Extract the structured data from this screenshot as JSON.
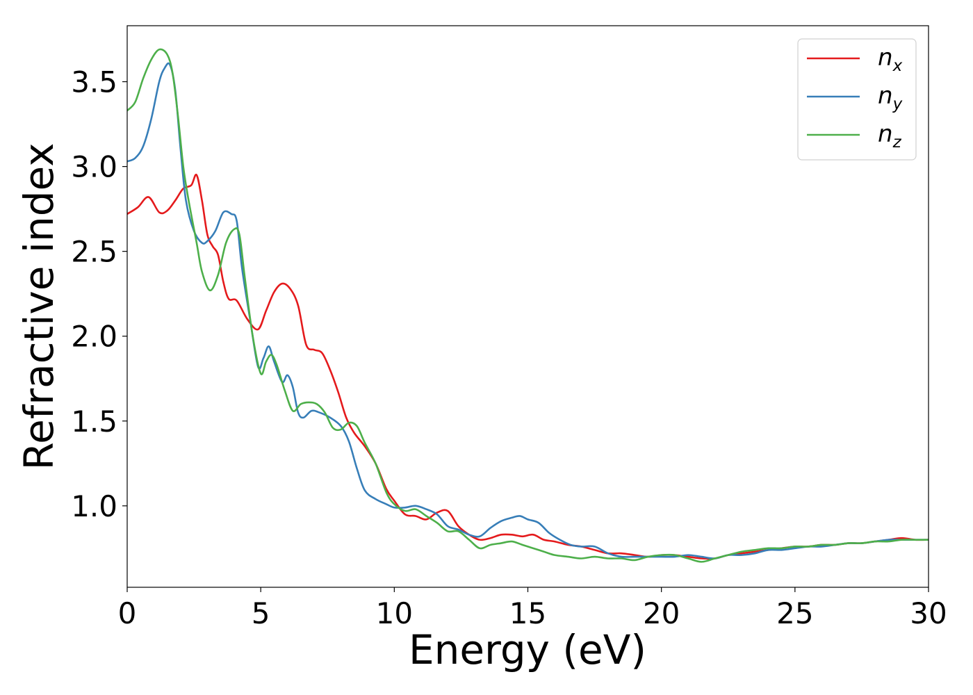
{
  "chart_data": {
    "type": "line",
    "title": "",
    "xlabel": "Energy (eV)",
    "ylabel": "Refractive index",
    "xlim": [
      0,
      30
    ],
    "ylim": [
      0.52,
      3.83
    ],
    "xticks": [
      0,
      5,
      10,
      15,
      20,
      25,
      30
    ],
    "xtick_labels": [
      "0",
      "5",
      "10",
      "15",
      "20",
      "25",
      "30"
    ],
    "yticks": [
      1.0,
      1.5,
      2.0,
      2.5,
      3.0,
      3.5
    ],
    "ytick_labels": [
      "1.0",
      "1.5",
      "2.0",
      "2.5",
      "3.0",
      "3.5"
    ],
    "grid": false,
    "legend_position": "top-right",
    "series": [
      {
        "name": "n_x",
        "label_base": "n",
        "label_sub": "x",
        "color": "#e41a1c",
        "points": [
          [
            0,
            2.72
          ],
          [
            0.4,
            2.76
          ],
          [
            0.8,
            2.82
          ],
          [
            1.2,
            2.73
          ],
          [
            1.5,
            2.74
          ],
          [
            1.8,
            2.8
          ],
          [
            2.1,
            2.87
          ],
          [
            2.4,
            2.89
          ],
          [
            2.6,
            2.95
          ],
          [
            2.8,
            2.8
          ],
          [
            3.0,
            2.6
          ],
          [
            3.2,
            2.53
          ],
          [
            3.4,
            2.48
          ],
          [
            3.6,
            2.32
          ],
          [
            3.8,
            2.22
          ],
          [
            4.1,
            2.21
          ],
          [
            4.5,
            2.1
          ],
          [
            4.9,
            2.04
          ],
          [
            5.2,
            2.15
          ],
          [
            5.5,
            2.26
          ],
          [
            5.8,
            2.31
          ],
          [
            6.1,
            2.28
          ],
          [
            6.4,
            2.18
          ],
          [
            6.7,
            1.95
          ],
          [
            7.0,
            1.92
          ],
          [
            7.3,
            1.9
          ],
          [
            7.6,
            1.8
          ],
          [
            7.9,
            1.67
          ],
          [
            8.2,
            1.52
          ],
          [
            8.5,
            1.43
          ],
          [
            8.9,
            1.35
          ],
          [
            9.3,
            1.25
          ],
          [
            9.7,
            1.1
          ],
          [
            10.0,
            1.03
          ],
          [
            10.4,
            0.95
          ],
          [
            10.8,
            0.94
          ],
          [
            11.2,
            0.92
          ],
          [
            11.6,
            0.96
          ],
          [
            12.0,
            0.97
          ],
          [
            12.4,
            0.88
          ],
          [
            12.8,
            0.83
          ],
          [
            13.2,
            0.8
          ],
          [
            13.6,
            0.81
          ],
          [
            14.0,
            0.83
          ],
          [
            14.4,
            0.83
          ],
          [
            14.8,
            0.82
          ],
          [
            15.2,
            0.83
          ],
          [
            15.6,
            0.8
          ],
          [
            16.0,
            0.79
          ],
          [
            16.5,
            0.77
          ],
          [
            17.0,
            0.76
          ],
          [
            17.5,
            0.74
          ],
          [
            18.0,
            0.72
          ],
          [
            18.5,
            0.72
          ],
          [
            19.0,
            0.71
          ],
          [
            19.5,
            0.7
          ],
          [
            20.0,
            0.71
          ],
          [
            20.5,
            0.71
          ],
          [
            21.0,
            0.7
          ],
          [
            21.5,
            0.69
          ],
          [
            22.0,
            0.69
          ],
          [
            22.5,
            0.71
          ],
          [
            23.0,
            0.72
          ],
          [
            23.5,
            0.73
          ],
          [
            24.0,
            0.74
          ],
          [
            24.5,
            0.75
          ],
          [
            25.0,
            0.76
          ],
          [
            25.5,
            0.76
          ],
          [
            26.0,
            0.77
          ],
          [
            26.5,
            0.77
          ],
          [
            27.0,
            0.78
          ],
          [
            27.5,
            0.78
          ],
          [
            28.0,
            0.79
          ],
          [
            28.5,
            0.8
          ],
          [
            29.0,
            0.81
          ],
          [
            29.5,
            0.8
          ],
          [
            30.0,
            0.8
          ]
        ]
      },
      {
        "name": "n_y",
        "label_base": "n",
        "label_sub": "y",
        "color": "#377eb8",
        "points": [
          [
            0,
            3.03
          ],
          [
            0.3,
            3.05
          ],
          [
            0.6,
            3.12
          ],
          [
            0.9,
            3.28
          ],
          [
            1.2,
            3.5
          ],
          [
            1.4,
            3.58
          ],
          [
            1.6,
            3.6
          ],
          [
            1.8,
            3.45
          ],
          [
            2.0,
            3.1
          ],
          [
            2.2,
            2.8
          ],
          [
            2.5,
            2.62
          ],
          [
            2.8,
            2.55
          ],
          [
            3.0,
            2.56
          ],
          [
            3.3,
            2.62
          ],
          [
            3.6,
            2.73
          ],
          [
            3.9,
            2.72
          ],
          [
            4.1,
            2.68
          ],
          [
            4.3,
            2.4
          ],
          [
            4.6,
            2.1
          ],
          [
            4.9,
            1.82
          ],
          [
            5.1,
            1.87
          ],
          [
            5.3,
            1.94
          ],
          [
            5.5,
            1.85
          ],
          [
            5.8,
            1.73
          ],
          [
            6.0,
            1.77
          ],
          [
            6.2,
            1.7
          ],
          [
            6.4,
            1.55
          ],
          [
            6.6,
            1.52
          ],
          [
            6.9,
            1.56
          ],
          [
            7.2,
            1.55
          ],
          [
            7.6,
            1.52
          ],
          [
            8.0,
            1.47
          ],
          [
            8.3,
            1.38
          ],
          [
            8.6,
            1.22
          ],
          [
            8.9,
            1.09
          ],
          [
            9.3,
            1.04
          ],
          [
            9.7,
            1.01
          ],
          [
            10.0,
            0.99
          ],
          [
            10.4,
            0.99
          ],
          [
            10.8,
            1.0
          ],
          [
            11.2,
            0.98
          ],
          [
            11.6,
            0.95
          ],
          [
            12.0,
            0.88
          ],
          [
            12.4,
            0.86
          ],
          [
            12.8,
            0.83
          ],
          [
            13.2,
            0.82
          ],
          [
            13.6,
            0.87
          ],
          [
            14.0,
            0.91
          ],
          [
            14.4,
            0.93
          ],
          [
            14.7,
            0.94
          ],
          [
            15.0,
            0.92
          ],
          [
            15.4,
            0.9
          ],
          [
            15.8,
            0.84
          ],
          [
            16.2,
            0.8
          ],
          [
            16.6,
            0.77
          ],
          [
            17.0,
            0.76
          ],
          [
            17.5,
            0.76
          ],
          [
            18.0,
            0.72
          ],
          [
            18.5,
            0.7
          ],
          [
            19.0,
            0.7
          ],
          [
            19.5,
            0.7
          ],
          [
            20.0,
            0.7
          ],
          [
            20.5,
            0.7
          ],
          [
            21.0,
            0.71
          ],
          [
            21.5,
            0.7
          ],
          [
            22.0,
            0.69
          ],
          [
            22.5,
            0.71
          ],
          [
            23.0,
            0.71
          ],
          [
            23.5,
            0.72
          ],
          [
            24.0,
            0.74
          ],
          [
            24.5,
            0.74
          ],
          [
            25.0,
            0.75
          ],
          [
            25.5,
            0.76
          ],
          [
            26.0,
            0.76
          ],
          [
            26.5,
            0.77
          ],
          [
            27.0,
            0.78
          ],
          [
            27.5,
            0.78
          ],
          [
            28.0,
            0.79
          ],
          [
            28.5,
            0.8
          ],
          [
            29.0,
            0.8
          ],
          [
            29.5,
            0.8
          ],
          [
            30.0,
            0.8
          ]
        ]
      },
      {
        "name": "n_z",
        "label_base": "n",
        "label_sub": "z",
        "color": "#4daf4a",
        "points": [
          [
            0,
            3.33
          ],
          [
            0.3,
            3.38
          ],
          [
            0.6,
            3.52
          ],
          [
            0.9,
            3.63
          ],
          [
            1.2,
            3.69
          ],
          [
            1.5,
            3.66
          ],
          [
            1.7,
            3.55
          ],
          [
            1.9,
            3.3
          ],
          [
            2.1,
            3.0
          ],
          [
            2.3,
            2.8
          ],
          [
            2.6,
            2.55
          ],
          [
            2.8,
            2.38
          ],
          [
            3.1,
            2.27
          ],
          [
            3.4,
            2.36
          ],
          [
            3.7,
            2.55
          ],
          [
            4.0,
            2.63
          ],
          [
            4.2,
            2.6
          ],
          [
            4.4,
            2.35
          ],
          [
            4.7,
            2.0
          ],
          [
            5.0,
            1.78
          ],
          [
            5.2,
            1.85
          ],
          [
            5.4,
            1.89
          ],
          [
            5.6,
            1.83
          ],
          [
            5.9,
            1.68
          ],
          [
            6.2,
            1.56
          ],
          [
            6.5,
            1.6
          ],
          [
            6.8,
            1.61
          ],
          [
            7.1,
            1.6
          ],
          [
            7.4,
            1.55
          ],
          [
            7.7,
            1.46
          ],
          [
            8.0,
            1.45
          ],
          [
            8.3,
            1.49
          ],
          [
            8.6,
            1.47
          ],
          [
            8.9,
            1.37
          ],
          [
            9.3,
            1.25
          ],
          [
            9.7,
            1.08
          ],
          [
            10.0,
            1.01
          ],
          [
            10.4,
            0.97
          ],
          [
            10.8,
            0.98
          ],
          [
            11.2,
            0.94
          ],
          [
            11.6,
            0.9
          ],
          [
            12.0,
            0.85
          ],
          [
            12.4,
            0.85
          ],
          [
            12.8,
            0.8
          ],
          [
            13.2,
            0.75
          ],
          [
            13.6,
            0.77
          ],
          [
            14.0,
            0.78
          ],
          [
            14.4,
            0.79
          ],
          [
            14.8,
            0.77
          ],
          [
            15.2,
            0.75
          ],
          [
            15.6,
            0.73
          ],
          [
            16.0,
            0.71
          ],
          [
            16.5,
            0.7
          ],
          [
            17.0,
            0.69
          ],
          [
            17.5,
            0.7
          ],
          [
            18.0,
            0.69
          ],
          [
            18.5,
            0.69
          ],
          [
            19.0,
            0.68
          ],
          [
            19.5,
            0.7
          ],
          [
            20.0,
            0.71
          ],
          [
            20.5,
            0.71
          ],
          [
            21.0,
            0.69
          ],
          [
            21.5,
            0.67
          ],
          [
            22.0,
            0.69
          ],
          [
            22.5,
            0.71
          ],
          [
            23.0,
            0.73
          ],
          [
            23.5,
            0.74
          ],
          [
            24.0,
            0.75
          ],
          [
            24.5,
            0.75
          ],
          [
            25.0,
            0.76
          ],
          [
            25.5,
            0.76
          ],
          [
            26.0,
            0.77
          ],
          [
            26.5,
            0.77
          ],
          [
            27.0,
            0.78
          ],
          [
            27.5,
            0.78
          ],
          [
            28.0,
            0.79
          ],
          [
            28.5,
            0.79
          ],
          [
            29.0,
            0.8
          ],
          [
            29.5,
            0.8
          ],
          [
            30.0,
            0.8
          ]
        ]
      }
    ]
  }
}
